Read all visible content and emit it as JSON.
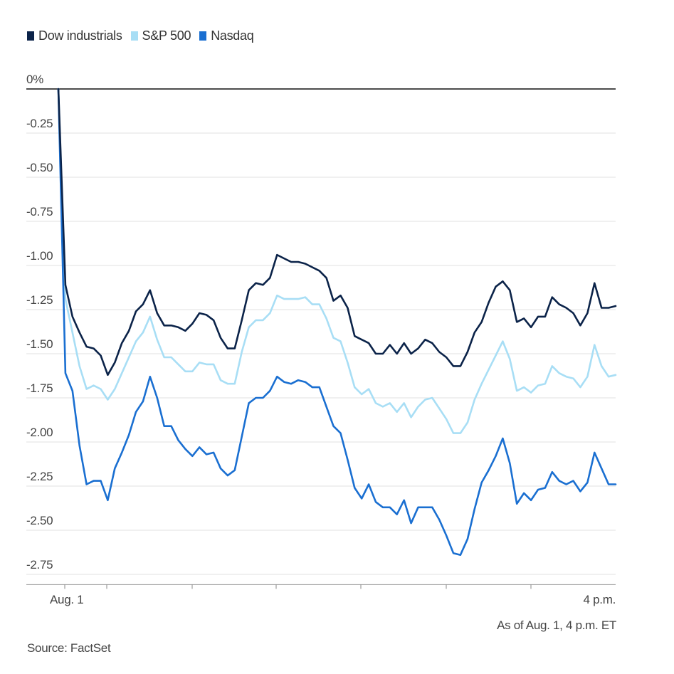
{
  "chart_data": {
    "type": "line",
    "title": "",
    "xlabel": "",
    "ylabel": "",
    "ylim": [
      -2.8,
      0
    ],
    "y_ticks": [
      {
        "value": 0,
        "label": "0%"
      },
      {
        "value": -0.25,
        "label": "-0.25"
      },
      {
        "value": -0.5,
        "label": "-0.50"
      },
      {
        "value": -0.75,
        "label": "-0.75"
      },
      {
        "value": -1.0,
        "label": "-1.00"
      },
      {
        "value": -1.25,
        "label": "-1.25"
      },
      {
        "value": -1.5,
        "label": "-1.50"
      },
      {
        "value": -1.75,
        "label": "-1.75"
      },
      {
        "value": -2.0,
        "label": "-2.00"
      },
      {
        "value": -2.25,
        "label": "-2.25"
      },
      {
        "value": -2.5,
        "label": "-2.50"
      },
      {
        "value": -2.75,
        "label": "-2.75"
      }
    ],
    "x_tick_labels": [
      {
        "index": 0,
        "label": "Aug. 1"
      },
      {
        "index": 6,
        "label": "4 p.m."
      }
    ],
    "legend_position": "top-left",
    "grid": true,
    "series": [
      {
        "name": "Dow industrials",
        "color": "#0b2349",
        "values": [
          0,
          -1.11,
          -1.29,
          -1.38,
          -1.46,
          -1.47,
          -1.51,
          -1.62,
          -1.55,
          -1.44,
          -1.37,
          -1.26,
          -1.22,
          -1.14,
          -1.27,
          -1.34,
          -1.34,
          -1.35,
          -1.37,
          -1.33,
          -1.27,
          -1.28,
          -1.31,
          -1.41,
          -1.47,
          -1.47,
          -1.31,
          -1.14,
          -1.1,
          -1.11,
          -1.07,
          -0.94,
          -0.96,
          -0.98,
          -0.98,
          -0.99,
          -1.01,
          -1.03,
          -1.07,
          -1.2,
          -1.17,
          -1.24,
          -1.4,
          -1.42,
          -1.44,
          -1.5,
          -1.5,
          -1.45,
          -1.5,
          -1.44,
          -1.5,
          -1.47,
          -1.42,
          -1.44,
          -1.49,
          -1.52,
          -1.57,
          -1.57,
          -1.49,
          -1.38,
          -1.32,
          -1.21,
          -1.12,
          -1.09,
          -1.14,
          -1.32,
          -1.3,
          -1.35,
          -1.29,
          -1.29,
          -1.18,
          -1.22,
          -1.24,
          -1.27,
          -1.34,
          -1.27,
          -1.1,
          -1.24,
          -1.24,
          -1.23
        ]
      },
      {
        "name": "S&P 500",
        "color": "#a8def5",
        "values": [
          0,
          -1.19,
          -1.38,
          -1.57,
          -1.7,
          -1.68,
          -1.7,
          -1.76,
          -1.7,
          -1.61,
          -1.52,
          -1.43,
          -1.38,
          -1.29,
          -1.42,
          -1.52,
          -1.52,
          -1.56,
          -1.6,
          -1.6,
          -1.55,
          -1.56,
          -1.56,
          -1.65,
          -1.67,
          -1.67,
          -1.49,
          -1.35,
          -1.31,
          -1.31,
          -1.27,
          -1.17,
          -1.19,
          -1.19,
          -1.19,
          -1.18,
          -1.22,
          -1.22,
          -1.3,
          -1.41,
          -1.43,
          -1.55,
          -1.69,
          -1.73,
          -1.7,
          -1.78,
          -1.8,
          -1.78,
          -1.83,
          -1.78,
          -1.86,
          -1.8,
          -1.76,
          -1.75,
          -1.81,
          -1.87,
          -1.95,
          -1.95,
          -1.89,
          -1.76,
          -1.67,
          -1.59,
          -1.51,
          -1.43,
          -1.53,
          -1.71,
          -1.69,
          -1.72,
          -1.68,
          -1.67,
          -1.57,
          -1.61,
          -1.63,
          -1.64,
          -1.69,
          -1.63,
          -1.45,
          -1.57,
          -1.63,
          -1.62
        ]
      },
      {
        "name": "Nasdaq",
        "color": "#1a6fd1",
        "values": [
          0,
          -1.61,
          -1.71,
          -2.02,
          -2.24,
          -2.22,
          -2.22,
          -2.33,
          -2.15,
          -2.06,
          -1.96,
          -1.83,
          -1.77,
          -1.63,
          -1.75,
          -1.91,
          -1.91,
          -1.99,
          -2.04,
          -2.08,
          -2.03,
          -2.07,
          -2.06,
          -2.15,
          -2.19,
          -2.16,
          -1.97,
          -1.78,
          -1.75,
          -1.75,
          -1.71,
          -1.63,
          -1.66,
          -1.67,
          -1.65,
          -1.66,
          -1.69,
          -1.69,
          -1.8,
          -1.91,
          -1.95,
          -2.1,
          -2.26,
          -2.32,
          -2.24,
          -2.34,
          -2.37,
          -2.37,
          -2.41,
          -2.33,
          -2.46,
          -2.37,
          -2.37,
          -2.37,
          -2.44,
          -2.53,
          -2.63,
          -2.64,
          -2.55,
          -2.38,
          -2.23,
          -2.16,
          -2.08,
          -1.98,
          -2.12,
          -2.35,
          -2.29,
          -2.33,
          -2.27,
          -2.26,
          -2.17,
          -2.22,
          -2.24,
          -2.22,
          -2.28,
          -2.23,
          -2.06,
          -2.15,
          -2.24,
          -2.24
        ]
      }
    ]
  },
  "source_note": "Source: FactSet",
  "as_of_note": "As of Aug. 1, 4 p.m. ET"
}
